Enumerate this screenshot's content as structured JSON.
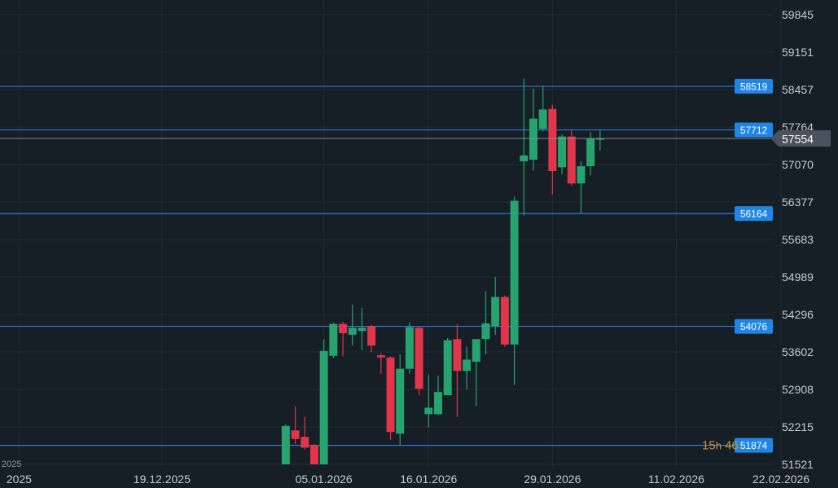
{
  "chart_data": {
    "type": "candlestick",
    "colors": {
      "background": "#161e26",
      "grid": "#212b35",
      "up": "#26a36f",
      "down": "#e0354a",
      "level_line": "#2b7bd9",
      "level_tag": "#1f86e6",
      "current_tag": "#4a535d",
      "axis_text": "#c3cad2",
      "timer": "#d4922b"
    },
    "y_axis": {
      "ticks": [
        "59845",
        "59151",
        "58457",
        "57764",
        "57070",
        "56377",
        "55683",
        "54989",
        "54296",
        "53602",
        "52908",
        "52215",
        "51521"
      ],
      "range": [
        51521,
        59845
      ]
    },
    "x_axis": {
      "ticks": [
        {
          "label": "2025",
          "day": -28
        },
        {
          "label": "19.12.2025",
          "day": -13
        },
        {
          "label": "05.01.2026",
          "day": 4
        },
        {
          "label": "16.01.2026",
          "day": 15
        },
        {
          "label": "29.01.2026",
          "day": 28
        },
        {
          "label": "11.02.2026",
          "day": 41
        },
        {
          "label": "22.02.2026",
          "day": 52
        }
      ],
      "range_days": [
        -30,
        56
      ]
    },
    "levels": [
      {
        "label": "58519",
        "value": 58519
      },
      {
        "label": "57712",
        "value": 57712
      },
      {
        "label": "56164",
        "value": 56164
      },
      {
        "label": "54076",
        "value": 54076
      },
      {
        "label": "51874",
        "value": 51874
      }
    ],
    "current_price": {
      "label": "57554",
      "value": 57554
    },
    "timer": {
      "prefix": "15",
      "unit": "h",
      "rest": " 46"
    },
    "bottom_left_text": "2025",
    "candles": [
      {
        "day": 0,
        "o": 51521,
        "h": 52260,
        "l": 51521,
        "c": 52230
      },
      {
        "day": 1,
        "o": 52150,
        "h": 52600,
        "l": 51900,
        "c": 51990
      },
      {
        "day": 2,
        "o": 52030,
        "h": 52400,
        "l": 51800,
        "c": 51830
      },
      {
        "day": 3,
        "o": 51880,
        "h": 51900,
        "l": 51521,
        "c": 51521
      },
      {
        "day": 4,
        "o": 51521,
        "h": 53840,
        "l": 51521,
        "c": 53620
      },
      {
        "day": 5,
        "o": 53530,
        "h": 54140,
        "l": 53490,
        "c": 54120
      },
      {
        "day": 6,
        "o": 54120,
        "h": 54160,
        "l": 53520,
        "c": 53950
      },
      {
        "day": 7,
        "o": 53920,
        "h": 54480,
        "l": 53720,
        "c": 54050
      },
      {
        "day": 8,
        "o": 53990,
        "h": 54420,
        "l": 53640,
        "c": 54050
      },
      {
        "day": 9,
        "o": 54080,
        "h": 54100,
        "l": 53600,
        "c": 53720
      },
      {
        "day": 10,
        "o": 53540,
        "h": 53580,
        "l": 53200,
        "c": 53500
      },
      {
        "day": 11,
        "o": 53500,
        "h": 53520,
        "l": 51980,
        "c": 52120
      },
      {
        "day": 12,
        "o": 52090,
        "h": 53560,
        "l": 51880,
        "c": 53290
      },
      {
        "day": 13,
        "o": 53290,
        "h": 54150,
        "l": 53200,
        "c": 54060
      },
      {
        "day": 14,
        "o": 54050,
        "h": 54080,
        "l": 52800,
        "c": 52920
      },
      {
        "day": 15,
        "o": 52450,
        "h": 53180,
        "l": 52210,
        "c": 52570
      },
      {
        "day": 16,
        "o": 52450,
        "h": 53160,
        "l": 52430,
        "c": 52860
      },
      {
        "day": 17,
        "o": 52800,
        "h": 53860,
        "l": 52800,
        "c": 53820
      },
      {
        "day": 18,
        "o": 53840,
        "h": 54120,
        "l": 52400,
        "c": 53250
      },
      {
        "day": 19,
        "o": 53250,
        "h": 53700,
        "l": 52900,
        "c": 53460
      },
      {
        "day": 20,
        "o": 53420,
        "h": 53800,
        "l": 52600,
        "c": 53840
      },
      {
        "day": 21,
        "o": 53840,
        "h": 54720,
        "l": 53560,
        "c": 54130
      },
      {
        "day": 22,
        "o": 54080,
        "h": 54990,
        "l": 53920,
        "c": 54620
      },
      {
        "day": 23,
        "o": 54620,
        "h": 54650,
        "l": 53700,
        "c": 53740
      },
      {
        "day": 24,
        "o": 53740,
        "h": 56470,
        "l": 52990,
        "c": 56400
      },
      {
        "day": 25,
        "o": 57130,
        "h": 58660,
        "l": 56130,
        "c": 57240
      },
      {
        "day": 26,
        "o": 57160,
        "h": 58480,
        "l": 56960,
        "c": 57920
      },
      {
        "day": 27,
        "o": 57730,
        "h": 58530,
        "l": 57680,
        "c": 58090
      },
      {
        "day": 28,
        "o": 58100,
        "h": 58180,
        "l": 56520,
        "c": 56950
      },
      {
        "day": 29,
        "o": 57020,
        "h": 57630,
        "l": 56890,
        "c": 57590
      },
      {
        "day": 30,
        "o": 57590,
        "h": 57710,
        "l": 56680,
        "c": 56720
      },
      {
        "day": 31,
        "o": 56720,
        "h": 57130,
        "l": 56170,
        "c": 57040
      },
      {
        "day": 32,
        "o": 57040,
        "h": 57670,
        "l": 56870,
        "c": 57550
      },
      {
        "day": 33,
        "o": 57530,
        "h": 57700,
        "l": 57330,
        "c": 57554
      }
    ]
  }
}
